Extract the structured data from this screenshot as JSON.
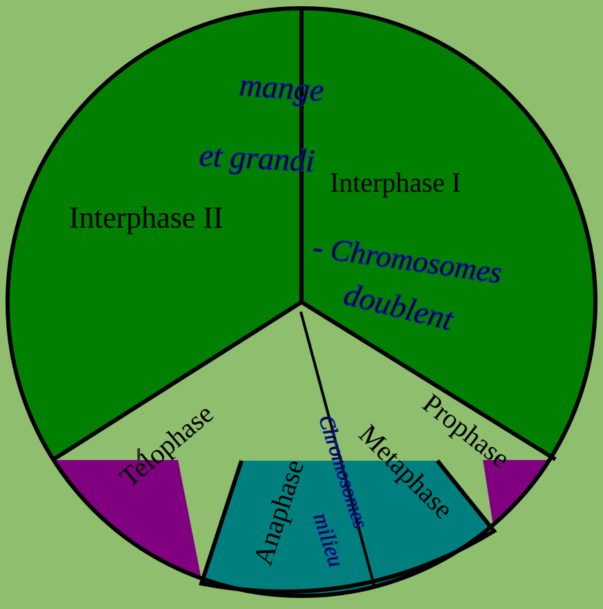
{
  "colors": {
    "background": "#8fbe6e",
    "interphase": "#007f00",
    "light_region": "#8fbe6e",
    "teal_region": "#007f7f",
    "purple_region": "#800080",
    "outline": "#000000",
    "handwriting": "#1a3fe0"
  },
  "labels": {
    "interphase_1": "Interphase I",
    "interphase_2": "Interphase II",
    "prophase": "Prophase",
    "metaphase": "Metaphase",
    "anaphase": "Anaphase",
    "telophase": "Telophase"
  },
  "handwriting": {
    "line_1": "mange",
    "line_2": "et grandi",
    "line_3": "- Chromosomes",
    "line_4": "doublent",
    "vertical_1": "Chromosomes",
    "vertical_2": "milieu"
  }
}
